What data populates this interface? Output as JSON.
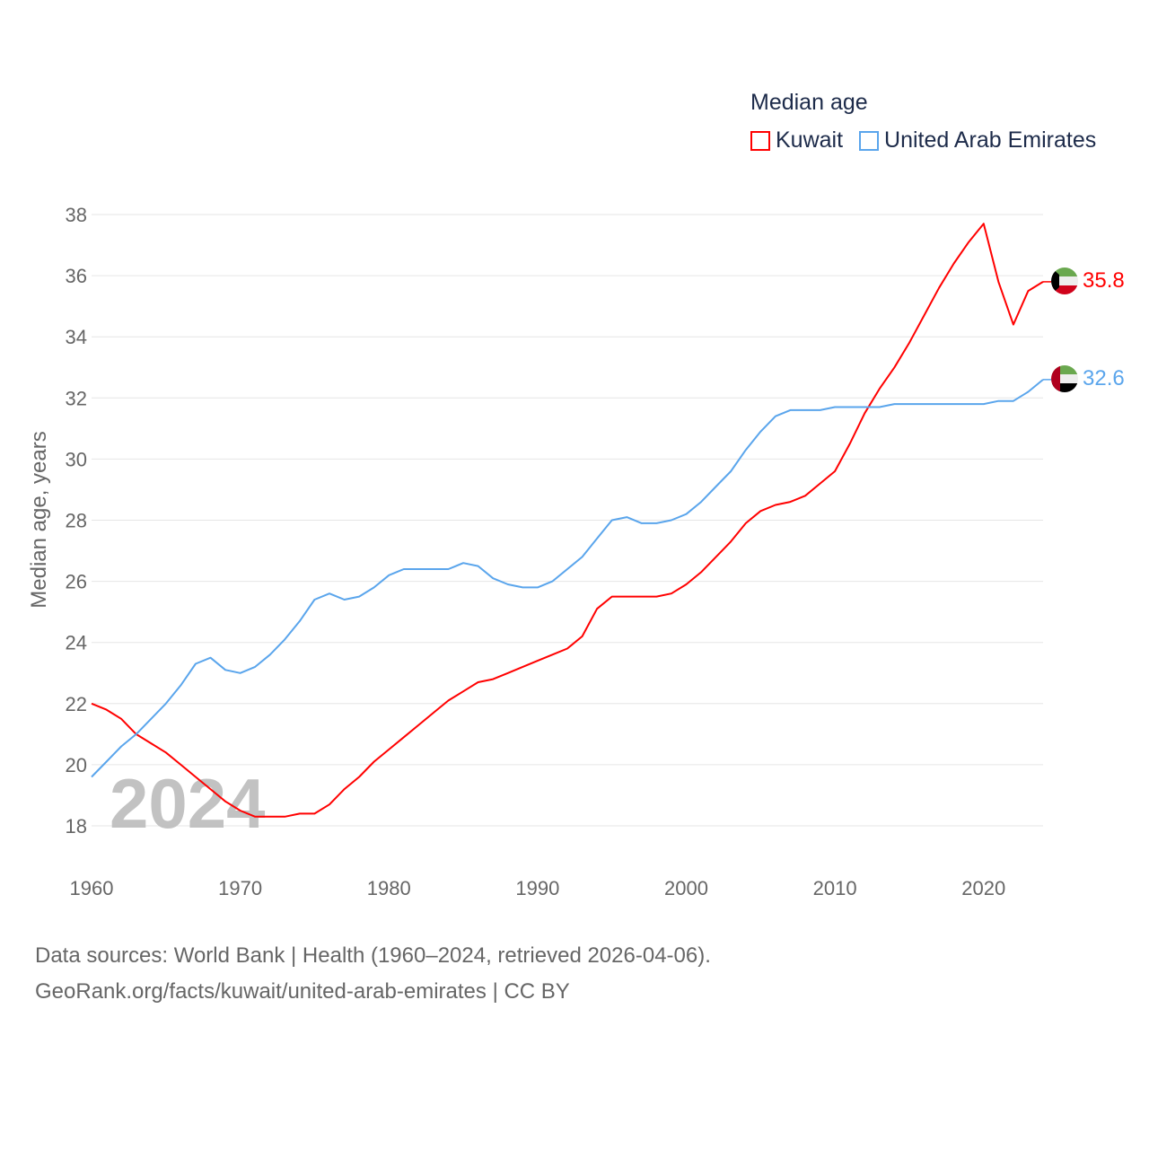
{
  "chart_data": {
    "type": "line",
    "title": "Median age",
    "xlabel": "",
    "ylabel": "Median age, years",
    "xlim": [
      1960,
      2024
    ],
    "ylim": [
      18,
      38
    ],
    "xticks": [
      1960,
      1970,
      1980,
      1990,
      2000,
      2010,
      2020
    ],
    "yticks": [
      18,
      20,
      22,
      24,
      26,
      28,
      30,
      32,
      34,
      36,
      38
    ],
    "grid": true,
    "legend_position": "top-right",
    "watermark_year": "2024",
    "x": [
      1960,
      1961,
      1962,
      1963,
      1964,
      1965,
      1966,
      1967,
      1968,
      1969,
      1970,
      1971,
      1972,
      1973,
      1974,
      1975,
      1976,
      1977,
      1978,
      1979,
      1980,
      1981,
      1982,
      1983,
      1984,
      1985,
      1986,
      1987,
      1988,
      1989,
      1990,
      1991,
      1992,
      1993,
      1994,
      1995,
      1996,
      1997,
      1998,
      1999,
      2000,
      2001,
      2002,
      2003,
      2004,
      2005,
      2006,
      2007,
      2008,
      2009,
      2010,
      2011,
      2012,
      2013,
      2014,
      2015,
      2016,
      2017,
      2018,
      2019,
      2020,
      2021,
      2022,
      2023,
      2024
    ],
    "series": [
      {
        "name": "Kuwait",
        "color": "#ff0000",
        "last_label": "35.8",
        "flag": "kuwait-flag",
        "values": [
          22.0,
          21.8,
          21.5,
          21.0,
          20.7,
          20.4,
          20.0,
          19.6,
          19.2,
          18.8,
          18.5,
          18.3,
          18.3,
          18.3,
          18.4,
          18.4,
          18.7,
          19.2,
          19.6,
          20.1,
          20.5,
          20.9,
          21.3,
          21.7,
          22.1,
          22.4,
          22.7,
          22.8,
          23.0,
          23.2,
          23.4,
          23.6,
          23.8,
          24.2,
          25.1,
          25.5,
          25.5,
          25.5,
          25.5,
          25.6,
          25.9,
          26.3,
          26.8,
          27.3,
          27.9,
          28.3,
          28.5,
          28.6,
          28.8,
          29.2,
          29.6,
          30.5,
          31.5,
          32.3,
          33.0,
          33.8,
          34.7,
          35.6,
          36.4,
          37.1,
          37.7,
          35.8,
          34.4,
          35.5,
          35.8
        ]
      },
      {
        "name": "United Arab Emirates",
        "color": "#5aa5ec",
        "last_label": "32.6",
        "flag": "uae-flag",
        "values": [
          19.6,
          20.1,
          20.6,
          21.0,
          21.5,
          22.0,
          22.6,
          23.3,
          23.5,
          23.1,
          23.0,
          23.2,
          23.6,
          24.1,
          24.7,
          25.4,
          25.6,
          25.4,
          25.5,
          25.8,
          26.2,
          26.4,
          26.4,
          26.4,
          26.4,
          26.6,
          26.5,
          26.1,
          25.9,
          25.8,
          25.8,
          26.0,
          26.4,
          26.8,
          27.4,
          28.0,
          28.1,
          27.9,
          27.9,
          28.0,
          28.2,
          28.6,
          29.1,
          29.6,
          30.3,
          30.9,
          31.4,
          31.6,
          31.6,
          31.6,
          31.7,
          31.7,
          31.7,
          31.7,
          31.8,
          31.8,
          31.8,
          31.8,
          31.8,
          31.8,
          31.8,
          31.9,
          31.9,
          32.2,
          32.6
        ]
      }
    ]
  },
  "footer": {
    "line1": "Data sources: World Bank | Health (1960–2024, retrieved 2026-04-06).",
    "line2": "GeoRank.org/facts/kuwait/united-arab-emirates | CC BY"
  }
}
